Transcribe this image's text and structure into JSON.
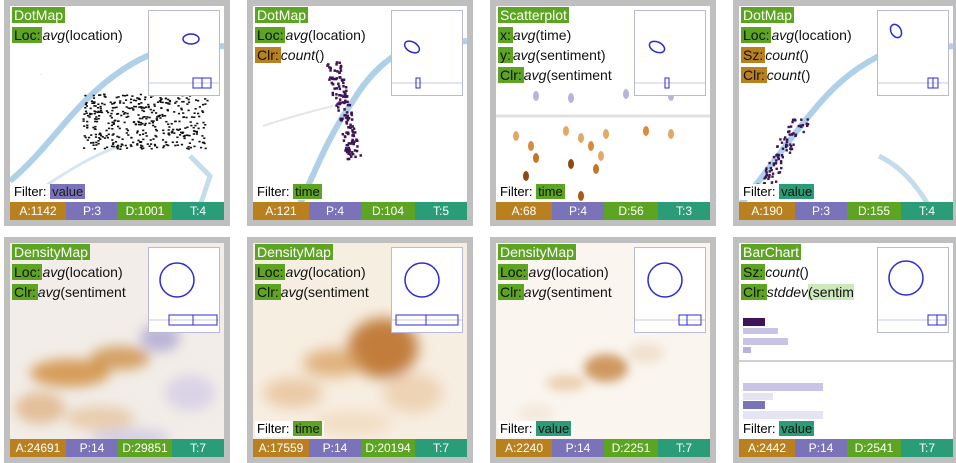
{
  "cards": [
    {
      "title": "DotMap",
      "lines": [
        {
          "key": "Loc:",
          "fn": "avg",
          "arg": "(location)"
        }
      ],
      "filter": {
        "label": "Filter:",
        "value": "value",
        "color": "purple"
      },
      "stats": {
        "a": "A:1142",
        "p": "P:3",
        "d": "D:1001",
        "t": "T:4"
      }
    },
    {
      "title": "DotMap",
      "lines": [
        {
          "key": "Loc:",
          "fn": "avg",
          "arg": "(location)"
        },
        {
          "key": "Clr:",
          "fn": "count",
          "arg": "()"
        }
      ],
      "filter": {
        "label": "Filter:",
        "value": "time",
        "color": "green"
      },
      "stats": {
        "a": "A:121",
        "p": "P:4",
        "d": "D:104",
        "t": "T:5"
      }
    },
    {
      "title": "Scatterplot",
      "lines": [
        {
          "key": "x:",
          "fn": "avg",
          "arg": "(time)"
        },
        {
          "key": "y:",
          "fn": "avg",
          "arg": "(sentiment)"
        },
        {
          "key": "Clr:",
          "fn": "avg",
          "arg": "(sentiment"
        }
      ],
      "filter": {
        "label": "Filter:",
        "value": "time",
        "color": "green"
      },
      "stats": {
        "a": "A:68",
        "p": "P:4",
        "d": "D:56",
        "t": "T:3"
      }
    },
    {
      "title": "DotMap",
      "lines": [
        {
          "key": "Loc:",
          "fn": "avg",
          "arg": "(location)"
        },
        {
          "key": "Sz:",
          "fn": "count",
          "arg": "()"
        },
        {
          "key": "Clr:",
          "fn": "count",
          "arg": "()"
        }
      ],
      "filter": {
        "label": "Filter:",
        "value": "value",
        "color": "teal"
      },
      "stats": {
        "a": "A:190",
        "p": "P:3",
        "d": "D:155",
        "t": "T:4"
      }
    },
    {
      "title": "DensityMap",
      "lines": [
        {
          "key": "Loc:",
          "fn": "avg",
          "arg": "(location)"
        },
        {
          "key": "Clr:",
          "fn": "avg",
          "arg": "(sentiment"
        }
      ],
      "filter": null,
      "stats": {
        "a": "A:24691",
        "p": "P:14",
        "d": "D:29851",
        "t": "T:7"
      }
    },
    {
      "title": "DensityMap",
      "lines": [
        {
          "key": "Loc:",
          "fn": "avg",
          "arg": "(location)"
        },
        {
          "key": "Clr:",
          "fn": "avg",
          "arg": "(sentiment"
        }
      ],
      "filter": {
        "label": "Filter:",
        "value": "time",
        "color": "green"
      },
      "stats": {
        "a": "A:17559",
        "p": "P:14",
        "d": "D:20194",
        "t": "T:7"
      }
    },
    {
      "title": "DensityMap",
      "lines": [
        {
          "key": "Loc:",
          "fn": "avg",
          "arg": "(location)"
        },
        {
          "key": "Clr:",
          "fn": "avg",
          "arg": "(sentiment"
        }
      ],
      "filter": {
        "label": "Filter:",
        "value": "value",
        "color": "teal"
      },
      "stats": {
        "a": "A:2240",
        "p": "P:14",
        "d": "D:2251",
        "t": "T:7"
      }
    },
    {
      "title": "BarChart",
      "lines": [
        {
          "key": "Sz:",
          "fn": "count",
          "arg": "()"
        },
        {
          "key": "Clr:",
          "fn": "stddev",
          "arg": "(sentim"
        }
      ],
      "filter": {
        "label": "Filter:",
        "value": "value",
        "color": "teal"
      },
      "stats": {
        "a": "A:2442",
        "p": "P:14",
        "d": "D:2541",
        "t": "T:7"
      }
    }
  ],
  "colors": {
    "title": "#5da423",
    "accent_brown": "#b8801f",
    "accent_purple": "#7b73b9",
    "accent_green": "#5da423",
    "accent_teal": "#2a9c78",
    "frame": "#bfbfbf",
    "inset_mark": "#2b2bd6"
  }
}
